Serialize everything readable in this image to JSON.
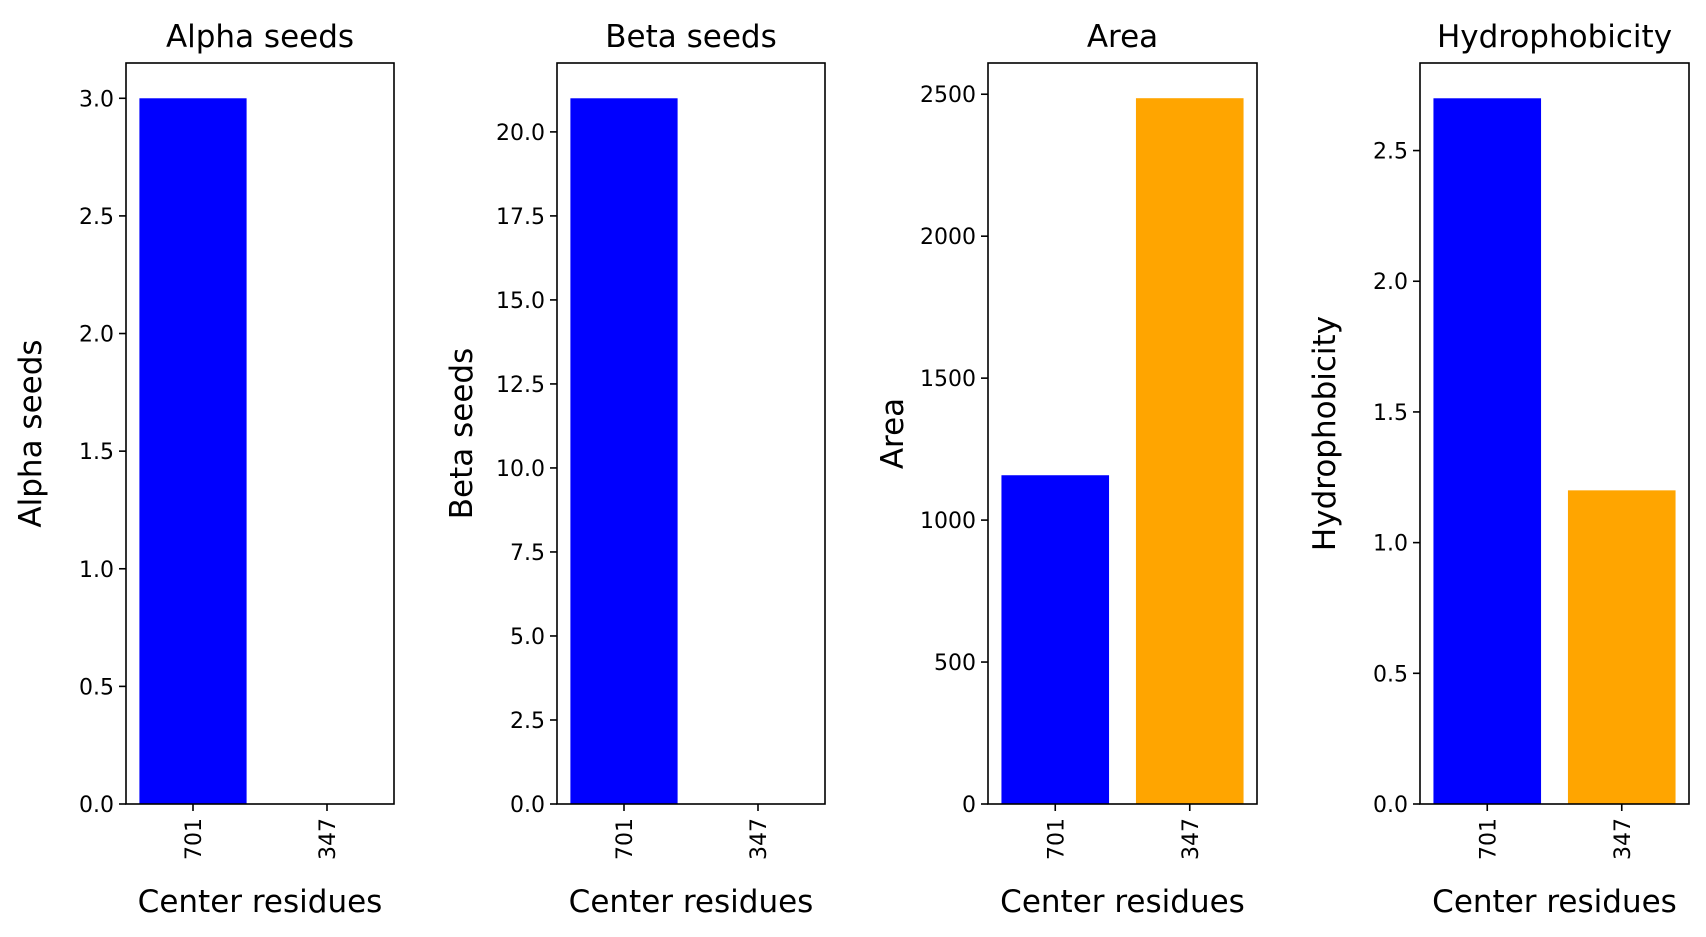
{
  "chart_data": [
    {
      "type": "bar",
      "title": "Alpha seeds",
      "xlabel": "Center residues",
      "ylabel": "Alpha seeds",
      "categories": [
        "701",
        "347"
      ],
      "values": [
        3.0,
        0.0
      ],
      "colors": [
        "#0000ff",
        "#ffa500"
      ],
      "ylim": [
        0,
        3.15
      ],
      "yticks": [
        0.0,
        0.5,
        1.0,
        1.5,
        2.0,
        2.5,
        3.0
      ],
      "ytick_labels": [
        "0.0",
        "0.5",
        "1.0",
        "1.5",
        "2.0",
        "2.5",
        "3.0"
      ],
      "grid": false,
      "legend": "none"
    },
    {
      "type": "bar",
      "title": "Beta seeds",
      "xlabel": "Center residues",
      "ylabel": "Beta seeds",
      "categories": [
        "701",
        "347"
      ],
      "values": [
        21.0,
        0.0
      ],
      "colors": [
        "#0000ff",
        "#ffa500"
      ],
      "ylim": [
        0,
        22.05
      ],
      "yticks": [
        0.0,
        2.5,
        5.0,
        7.5,
        10.0,
        12.5,
        15.0,
        17.5,
        20.0
      ],
      "ytick_labels": [
        "0.0",
        "2.5",
        "5.0",
        "7.5",
        "10.0",
        "12.5",
        "15.0",
        "17.5",
        "20.0"
      ],
      "grid": false,
      "legend": "none"
    },
    {
      "type": "bar",
      "title": "Area",
      "xlabel": "Center residues",
      "ylabel": "Area",
      "categories": [
        "701",
        "347"
      ],
      "values": [
        1158,
        2486
      ],
      "colors": [
        "#0000ff",
        "#ffa500"
      ],
      "ylim": [
        0,
        2610
      ],
      "yticks": [
        0,
        500,
        1000,
        1500,
        2000,
        2500
      ],
      "ytick_labels": [
        "0",
        "500",
        "1000",
        "1500",
        "2000",
        "2500"
      ],
      "grid": false,
      "legend": "none"
    },
    {
      "type": "bar",
      "title": "Hydrophobicity",
      "xlabel": "Center residues",
      "ylabel": "Hydrophobicity",
      "categories": [
        "701",
        "347"
      ],
      "values": [
        2.7,
        1.2
      ],
      "colors": [
        "#0000ff",
        "#ffa500"
      ],
      "ylim": [
        0,
        2.835
      ],
      "yticks": [
        0.0,
        0.5,
        1.0,
        1.5,
        2.0,
        2.5
      ],
      "ytick_labels": [
        "0.0",
        "0.5",
        "1.0",
        "1.5",
        "2.0",
        "2.5"
      ],
      "grid": false,
      "legend": "none"
    }
  ]
}
